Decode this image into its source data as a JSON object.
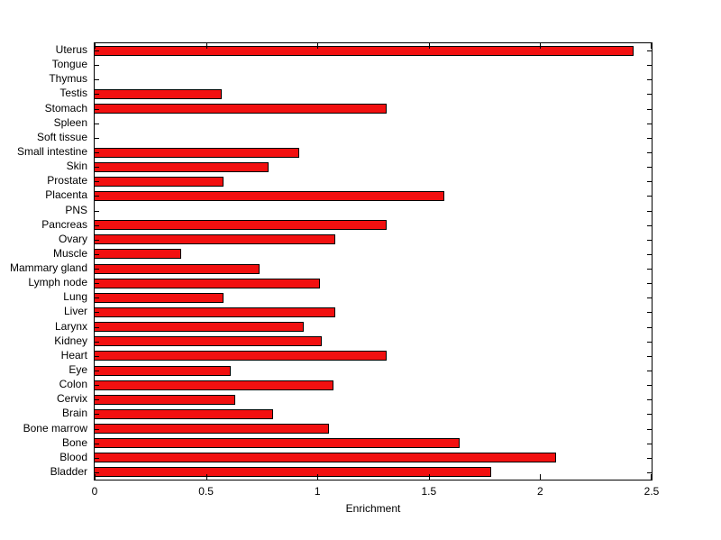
{
  "chart_data": {
    "type": "bar",
    "orientation": "horizontal",
    "title": "",
    "xlabel": "Enrichment",
    "ylabel": "",
    "xlim": [
      0,
      2.5
    ],
    "xticks": [
      0,
      0.5,
      1,
      1.5,
      2,
      2.5
    ],
    "xtick_labels": [
      "0",
      "0.5",
      "1",
      "1.5",
      "2",
      "2.5"
    ],
    "grid": false,
    "bar_color": "#f21010",
    "bar_edge_color": "#000000",
    "categories": [
      "Uterus",
      "Tongue",
      "Thymus",
      "Testis",
      "Stomach",
      "Spleen",
      "Soft tissue",
      "Small intestine",
      "Skin",
      "Prostate",
      "Placenta",
      "PNS",
      "Pancreas",
      "Ovary",
      "Muscle",
      "Mammary gland",
      "Lymph node",
      "Lung",
      "Liver",
      "Larynx",
      "Kidney",
      "Heart",
      "Eye",
      "Colon",
      "Cervix",
      "Brain",
      "Bone marrow",
      "Bone",
      "Blood",
      "Bladder"
    ],
    "values": [
      2.42,
      0,
      0,
      0.57,
      1.31,
      0,
      0,
      0.92,
      0.78,
      0.58,
      1.57,
      0,
      1.31,
      1.08,
      0.39,
      0.74,
      1.01,
      0.58,
      1.08,
      0.94,
      1.02,
      1.31,
      0.61,
      1.07,
      0.63,
      0.8,
      1.05,
      1.64,
      2.07,
      1.78
    ]
  }
}
